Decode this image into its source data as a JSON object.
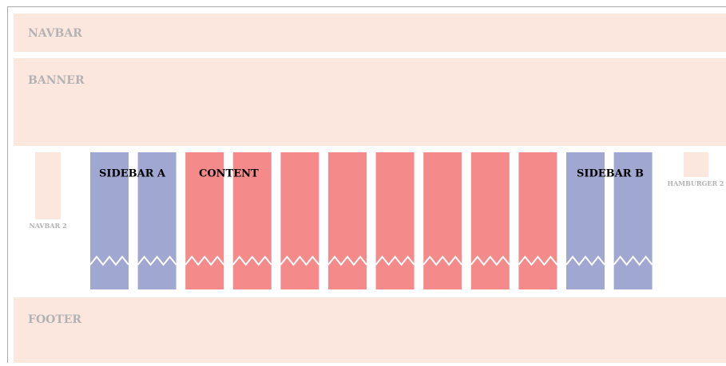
{
  "navbar": {
    "label": "NAVBAR"
  },
  "banner": {
    "label": "BANNER"
  },
  "navbar2": {
    "label": "NAVBAR 2"
  },
  "sidebar_a": {
    "label": "SIDEBAR A"
  },
  "content": {
    "label": "CONTENT"
  },
  "sidebar_b": {
    "label": "SIDEBAR B"
  },
  "hamburger2": {
    "label": "HAMBURGER 2"
  },
  "footer": {
    "label": "FOOTER"
  }
}
